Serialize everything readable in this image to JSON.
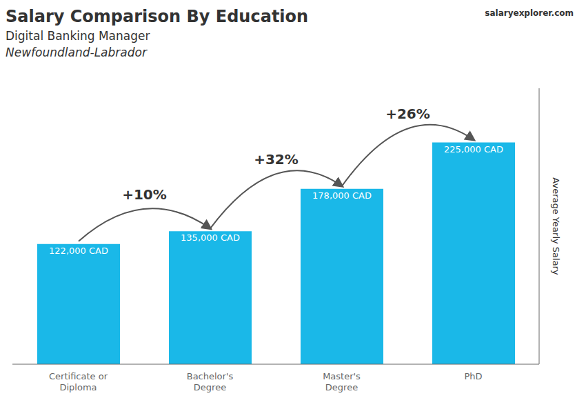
{
  "chart_data": {
    "type": "bar",
    "title": "Salary Comparison By Education",
    "subtitle": [
      "Digital Banking Manager",
      "Newfoundland-Labrador"
    ],
    "annotations": [
      {
        "text": "salaryexplorer.com"
      },
      {
        "text": "+10%",
        "between": [
          "Certificate or\nDiploma",
          "Bachelor's\nDegree"
        ]
      },
      {
        "text": "+32%",
        "between": [
          "Bachelor's\nDegree",
          "Master's\nDegree"
        ]
      },
      {
        "text": "+26%",
        "between": [
          "Master's\nDegree",
          "PhD"
        ]
      }
    ],
    "ylabel": "Average Yearly Salary",
    "categories": [
      "Certificate or\nDiploma",
      "Bachelor's\nDegree",
      "Master's\nDegree",
      "PhD"
    ],
    "values": [
      122000,
      135000,
      178000,
      225000
    ],
    "value_labels": [
      "122,000 CAD",
      "135,000 CAD",
      "178,000 CAD",
      "225,000 CAD"
    ],
    "data_labels": true,
    "color": "#1ab8e8",
    "ylim": [
      0,
      280000
    ],
    "tick_labels": "x",
    "grid": false
  }
}
